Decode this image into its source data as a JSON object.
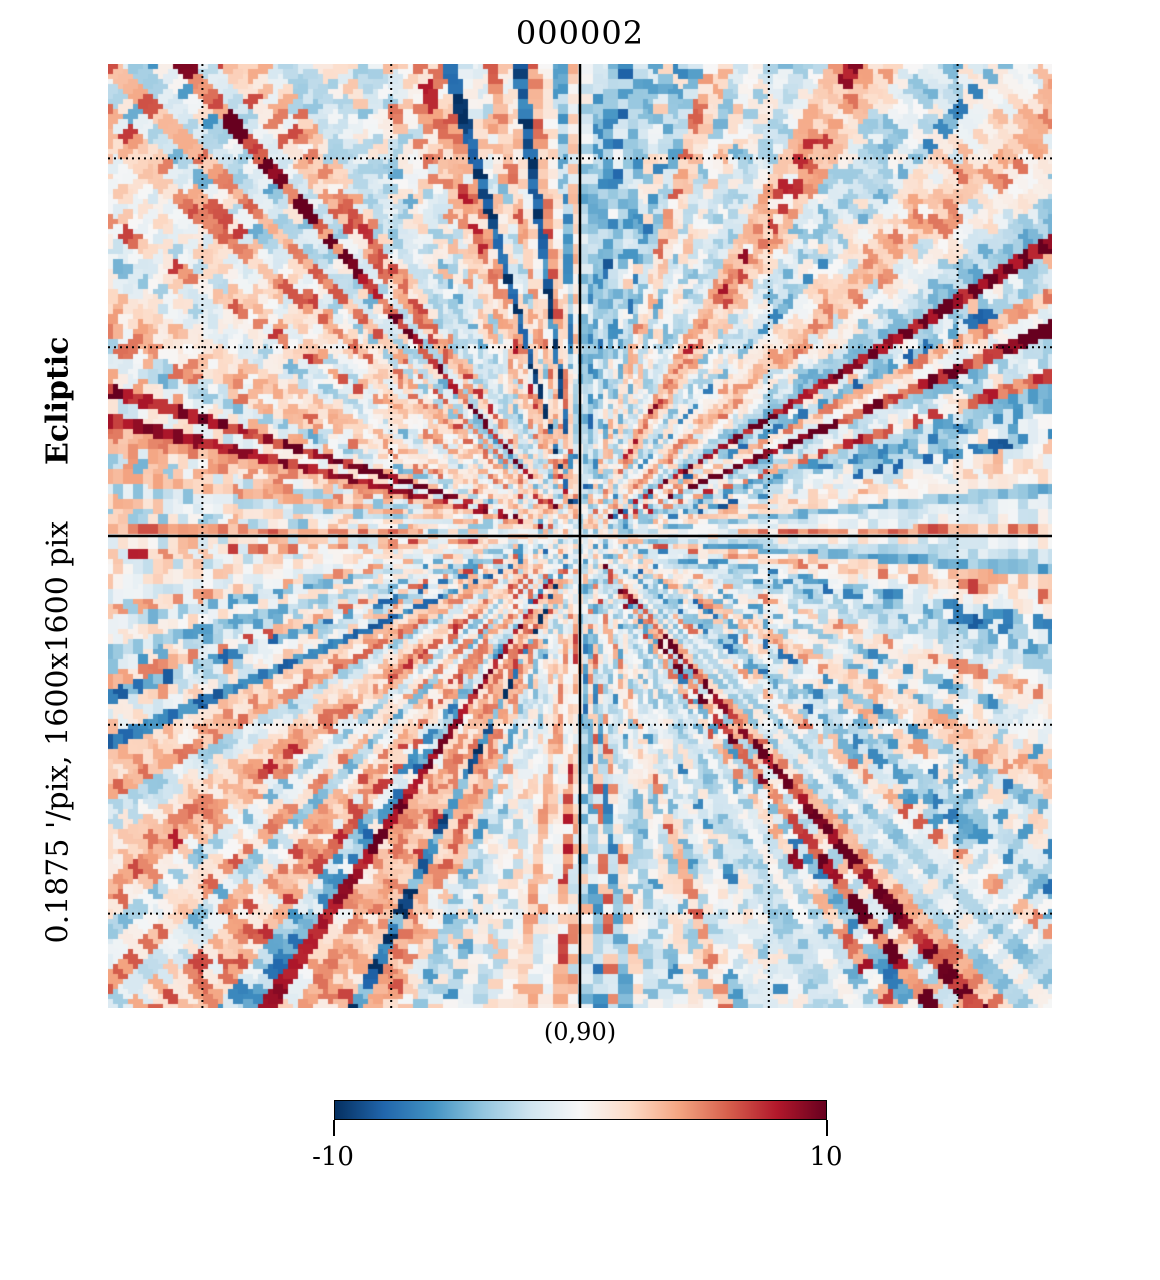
{
  "chart_data": {
    "type": "heatmap",
    "title": "000002",
    "projection_center_label": "(0,90)",
    "coordinate_system": "Ecliptic",
    "resolution_label": "0.1875 '/pix,   1600x1600 pix",
    "colormap": "RdBu_r",
    "color_range": [
      -10,
      10
    ],
    "colorbar_ticks": [
      -10,
      10
    ],
    "colorbar_tick_labels": [
      "-10",
      "10"
    ],
    "graticule": "dotted",
    "colormap_stops": [
      "#053061",
      "#2166ac",
      "#4393c3",
      "#92c5de",
      "#d1e5f0",
      "#f7f7f7",
      "#fddbc7",
      "#f4a582",
      "#d6604d",
      "#b2182b",
      "#67001f"
    ],
    "axis_line_color": "#000000"
  }
}
